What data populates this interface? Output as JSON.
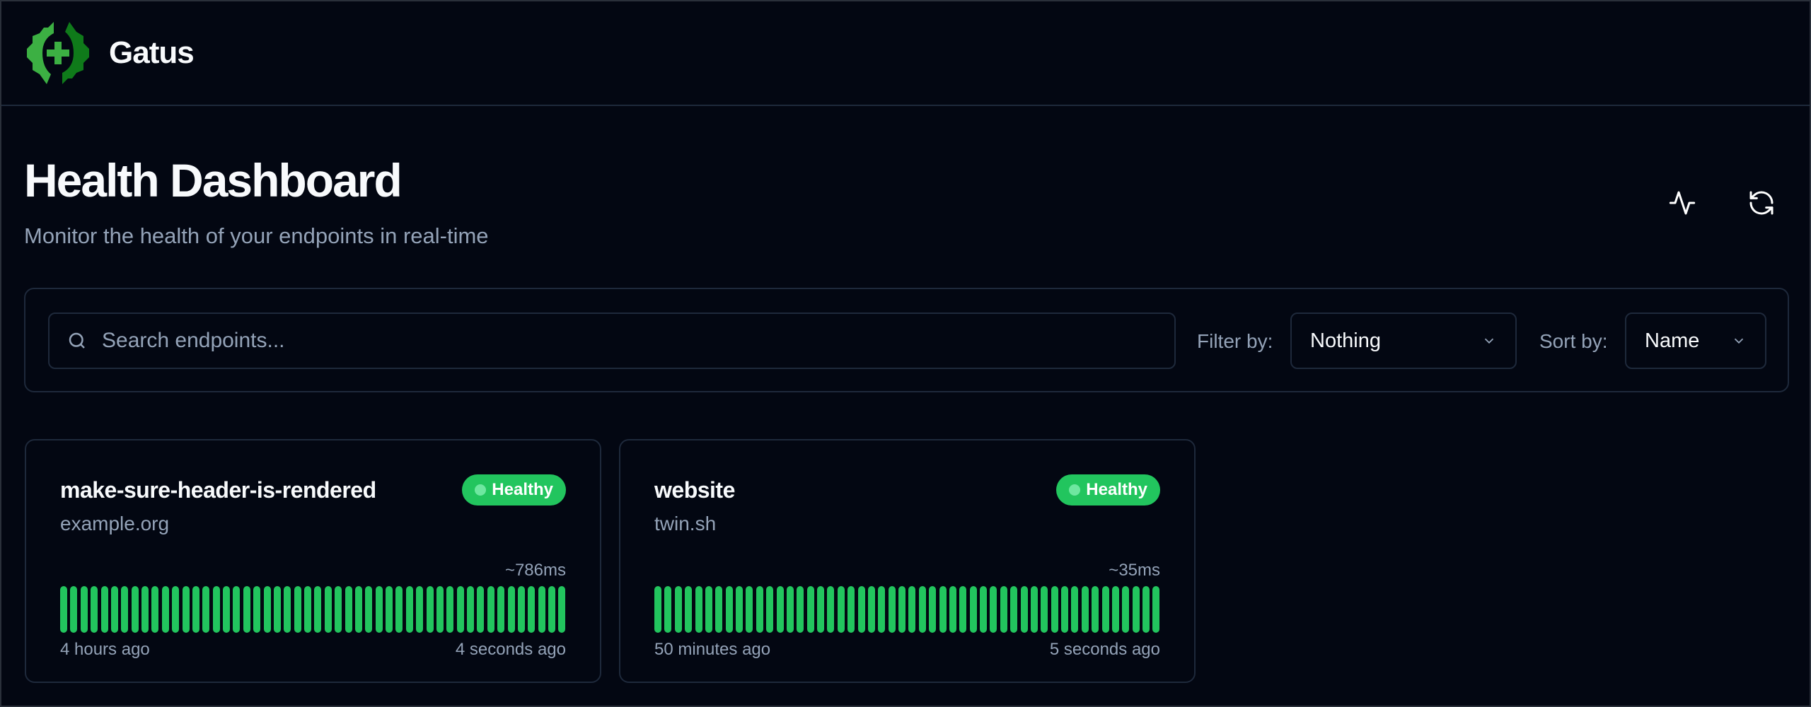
{
  "app": {
    "name": "Gatus"
  },
  "page": {
    "title": "Health Dashboard",
    "subtitle": "Monitor the health of your endpoints in real-time"
  },
  "actions": [
    {
      "icon": "activity-icon"
    },
    {
      "icon": "refresh-icon"
    }
  ],
  "toolbar": {
    "search_placeholder": "Search endpoints...",
    "filter_label": "Filter by:",
    "filter_value": "Nothing",
    "sort_label": "Sort by:",
    "sort_value": "Name"
  },
  "colors": {
    "background": "#030712",
    "border": "#1e293b",
    "healthy": "#22c55e",
    "muted": "#94a3b8"
  },
  "endpoints": [
    {
      "name": "make-sure-header-is-rendered",
      "host": "example.org",
      "status": "Healthy",
      "response_time": "~786ms",
      "oldest": "4 hours ago",
      "newest": "4 seconds ago",
      "results": [
        "success",
        "success",
        "success",
        "success",
        "success",
        "success",
        "success",
        "success",
        "success",
        "success",
        "success",
        "success",
        "success",
        "success",
        "success",
        "success",
        "success",
        "success",
        "success",
        "success",
        "success",
        "success",
        "success",
        "success",
        "success",
        "success",
        "success",
        "success",
        "success",
        "success",
        "success",
        "success",
        "success",
        "success",
        "success",
        "success",
        "success",
        "success",
        "success",
        "success",
        "success",
        "success",
        "success",
        "success",
        "success",
        "success",
        "success",
        "success",
        "success",
        "success"
      ]
    },
    {
      "name": "website",
      "host": "twin.sh",
      "status": "Healthy",
      "response_time": "~35ms",
      "oldest": "50 minutes ago",
      "newest": "5 seconds ago",
      "results": [
        "success",
        "success",
        "success",
        "success",
        "success",
        "success",
        "success",
        "success",
        "success",
        "success",
        "success",
        "success",
        "success",
        "success",
        "success",
        "success",
        "success",
        "success",
        "success",
        "success",
        "success",
        "success",
        "success",
        "success",
        "success",
        "success",
        "success",
        "success",
        "success",
        "success",
        "success",
        "success",
        "success",
        "success",
        "success",
        "success",
        "success",
        "success",
        "success",
        "success",
        "success",
        "success",
        "success",
        "success",
        "success",
        "success",
        "success",
        "success",
        "success",
        "success"
      ]
    }
  ]
}
